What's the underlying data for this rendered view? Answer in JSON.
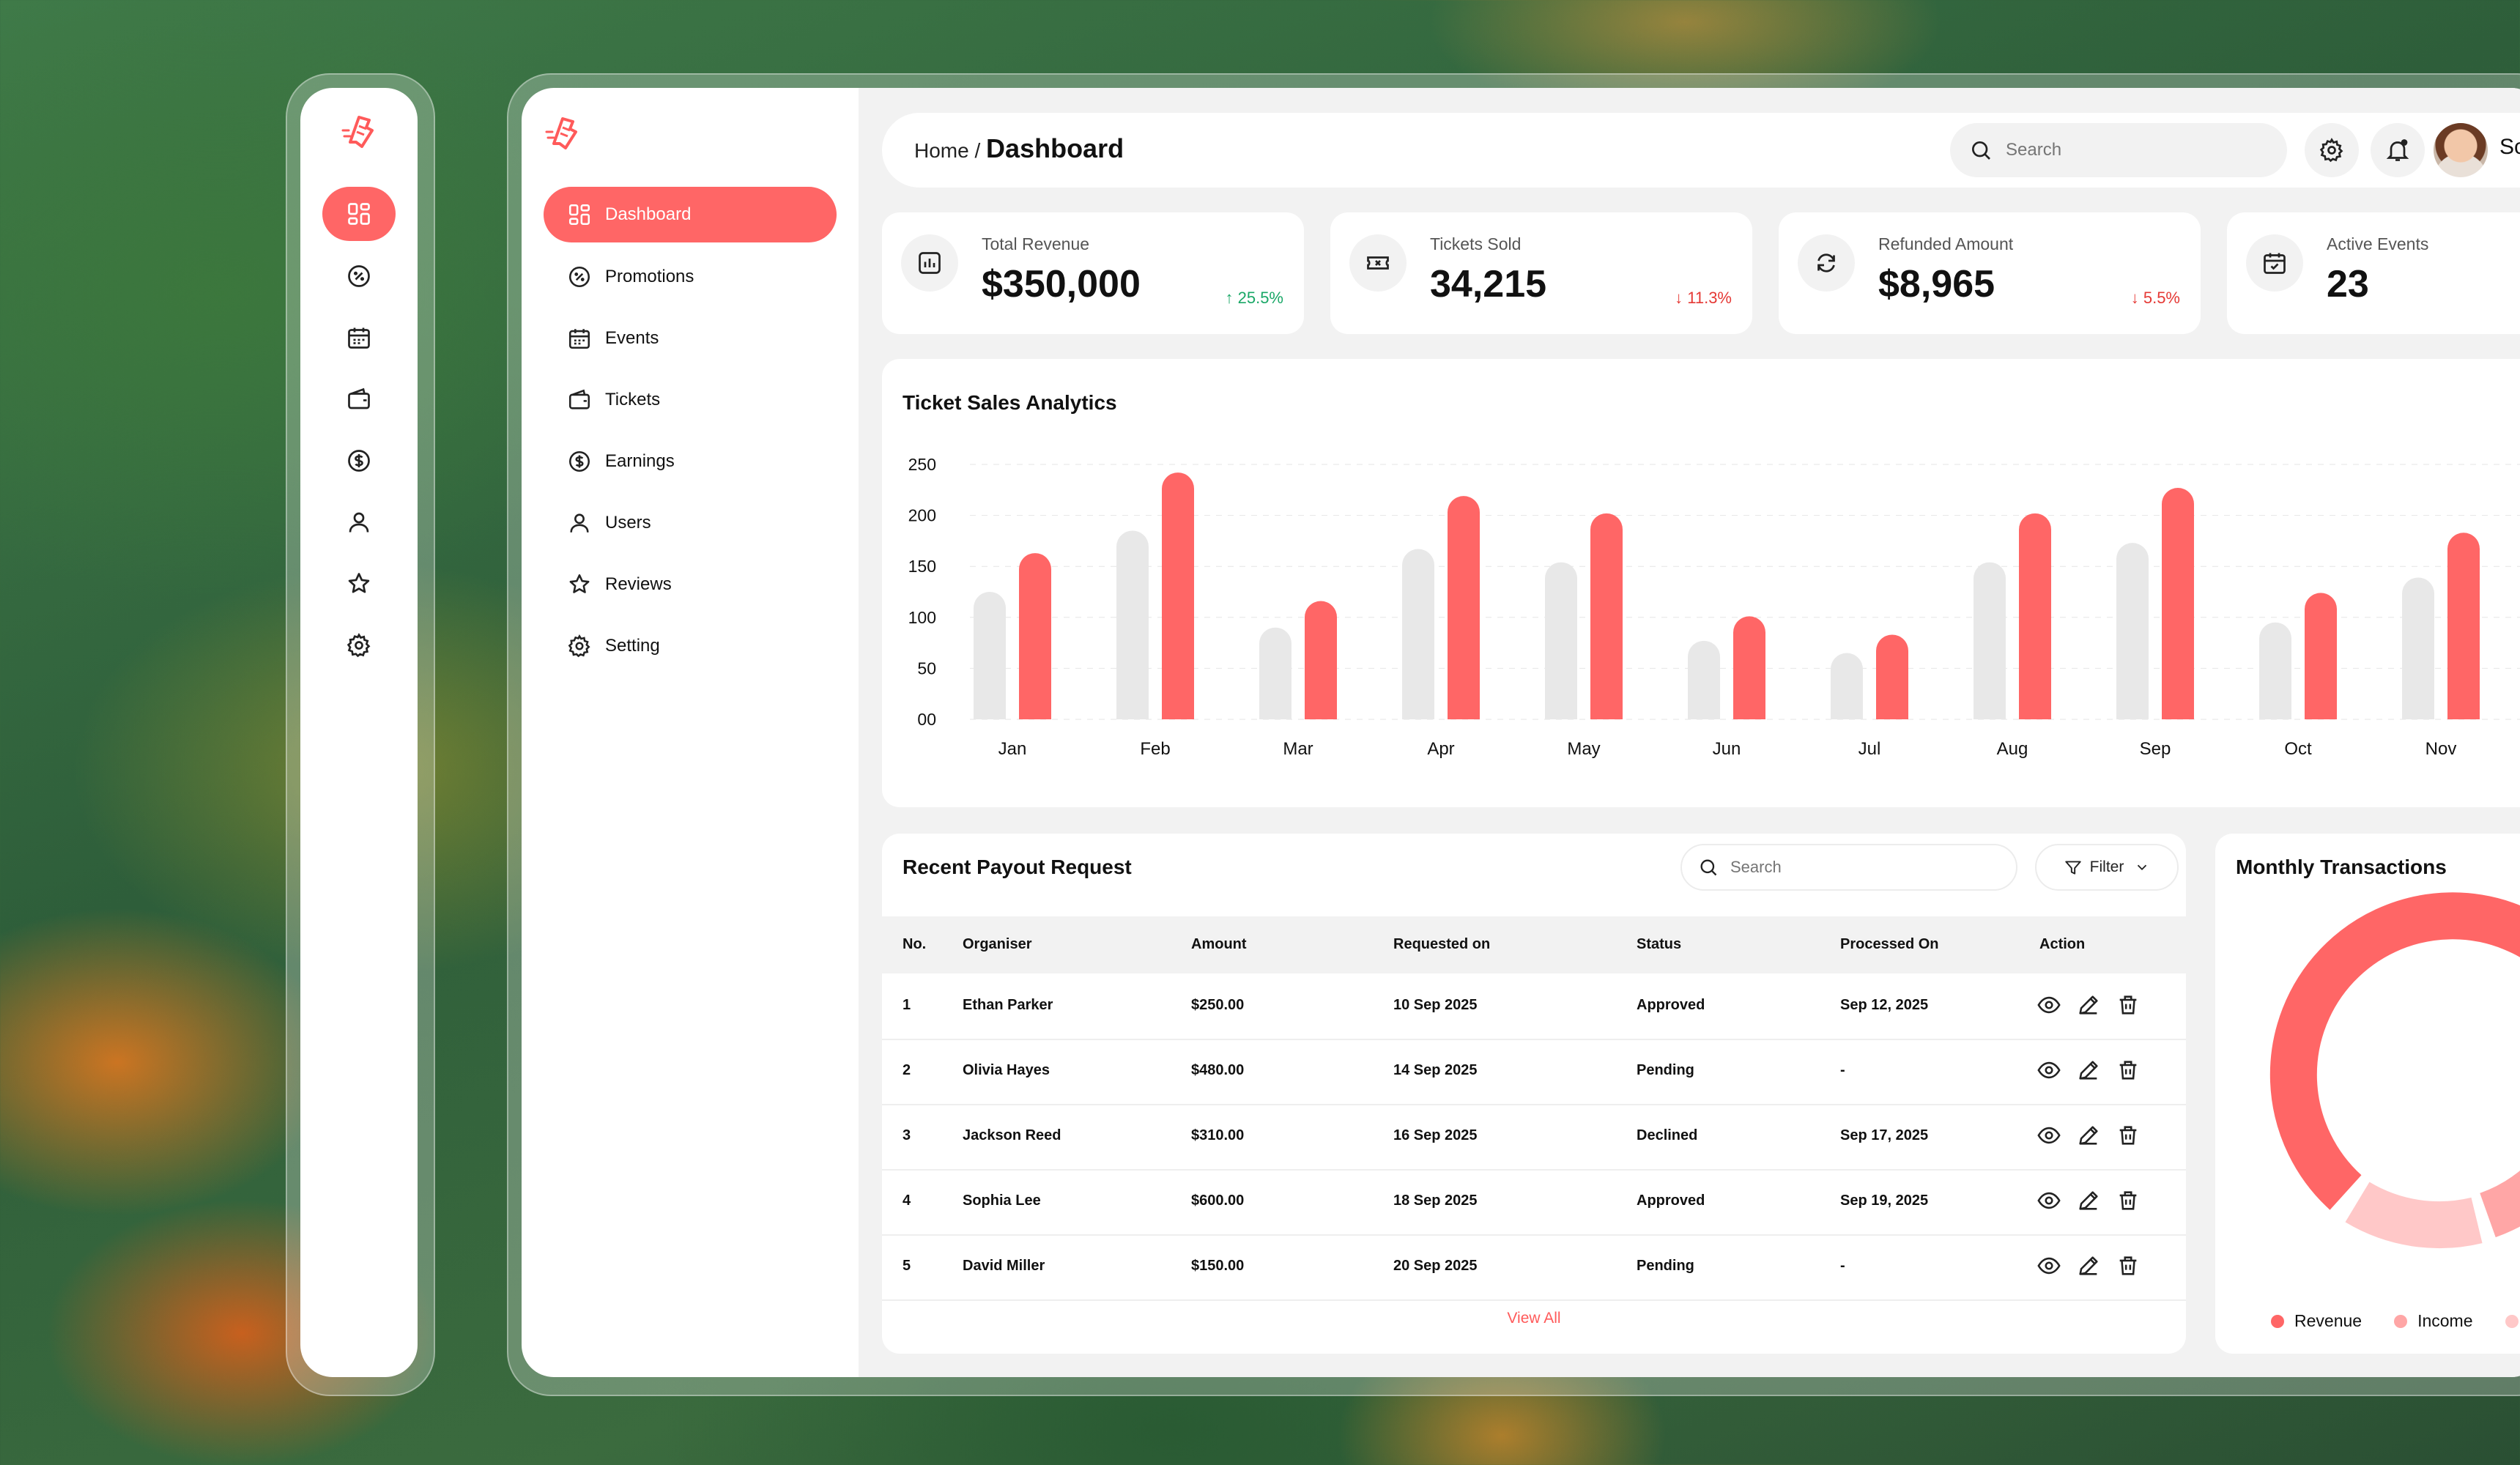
{
  "header": {
    "breadcrumb_home": "Home",
    "breadcrumb_sep": "/",
    "page_title": "Dashboard",
    "search_placeholder": "Search",
    "user_name_partial": "Sc"
  },
  "sidebar": {
    "items": [
      {
        "label": "Dashboard",
        "icon": "grid-icon",
        "active": true
      },
      {
        "label": "Promotions",
        "icon": "discount-icon"
      },
      {
        "label": "Events",
        "icon": "calendar-icon"
      },
      {
        "label": "Tickets",
        "icon": "wallet-icon"
      },
      {
        "label": "Earnings",
        "icon": "dollar-icon"
      },
      {
        "label": "Users",
        "icon": "user-icon"
      },
      {
        "label": "Reviews",
        "icon": "star-icon"
      },
      {
        "label": "Setting",
        "icon": "gear-icon"
      }
    ]
  },
  "stats": [
    {
      "label": "Total Revenue",
      "value": "$350,000",
      "change": "25.5%",
      "direction": "up",
      "icon": "bar-chart-icon"
    },
    {
      "label": "Tickets Sold",
      "value": "34,215",
      "change": "11.3%",
      "direction": "down",
      "icon": "ticket-icon"
    },
    {
      "label": "Refunded Amount",
      "value": "$8,965",
      "change": "5.5%",
      "direction": "down",
      "icon": "refresh-icon"
    },
    {
      "label": "Active Events",
      "value": "23",
      "icon": "calendar-check-icon"
    }
  ],
  "chart_title": "Ticket Sales Analytics",
  "chart_data": {
    "type": "bar",
    "title": "Ticket Sales Analytics",
    "categories": [
      "Jan",
      "Feb",
      "Mar",
      "Apr",
      "May",
      "Jun",
      "Jul",
      "Aug",
      "Sep",
      "Oct",
      "Nov"
    ],
    "series": [
      {
        "values": [
          125,
          185,
          90,
          167,
          154,
          77,
          65,
          154,
          173,
          95,
          139
        ],
        "color": "#e8e8e8"
      },
      {
        "values": [
          163,
          242,
          116,
          219,
          202,
          101,
          83,
          202,
          227,
          124,
          183
        ],
        "color": "#ff6666"
      }
    ],
    "y_ticks": [
      "00",
      "50",
      "100",
      "150",
      "200",
      "250"
    ],
    "ylim": [
      0,
      250
    ],
    "grid": true
  },
  "payouts": {
    "title": "Recent Payout Request",
    "search_placeholder": "Search",
    "filter_label": "Filter",
    "columns": [
      "No.",
      "Organiser",
      "Amount",
      "Requested on",
      "Status",
      "Processed On",
      "Action"
    ],
    "rows": [
      [
        "1",
        "Ethan Parker",
        "$250.00",
        "10 Sep 2025",
        "Approved",
        "Sep 12, 2025"
      ],
      [
        "2",
        "Olivia Hayes",
        "$480.00",
        "14 Sep 2025",
        "Pending",
        "-"
      ],
      [
        "3",
        "Jackson Reed",
        "$310.00",
        "16 Sep 2025",
        "Declined",
        "Sep 17, 2025"
      ],
      [
        "4",
        "Sophia Lee",
        "$600.00",
        "18 Sep 2025",
        "Approved",
        "Sep 19, 2025"
      ],
      [
        "5",
        "David Miller",
        "$150.00",
        "20 Sep 2025",
        "Pending",
        "-"
      ]
    ],
    "view_all": "View All"
  },
  "transactions": {
    "title": "Monthly Transactions",
    "legend": [
      {
        "label": "Revenue",
        "color": "#ff6666"
      },
      {
        "label": "Income",
        "color": "#ffa6a6"
      }
    ]
  },
  "colors": {
    "accent": "#ff6666",
    "up": "#1aa867",
    "down": "#e53935"
  }
}
